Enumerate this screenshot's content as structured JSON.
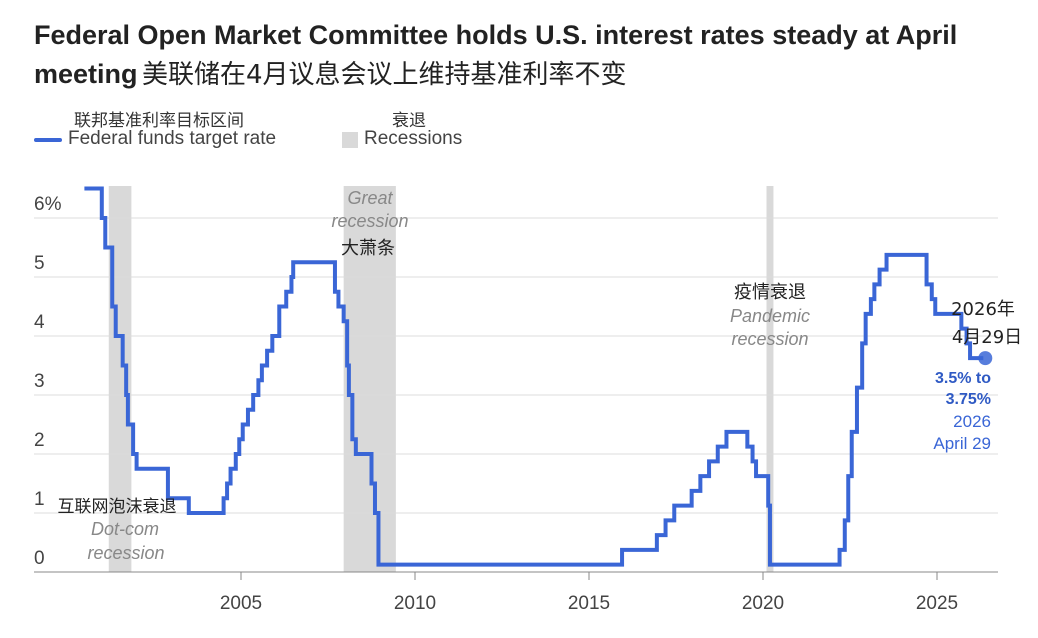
{
  "title": {
    "en": "Federal Open Market Committee holds U.S. interest rates steady at April meeting",
    "zh": "美联储在4月议息会议上维持基准利率不变"
  },
  "legend": {
    "rate": {
      "zh": "联邦基准利率目标区间",
      "en": "Federal funds target rate",
      "color": "#3a66d6"
    },
    "recession": {
      "zh": "衰退",
      "en": "Recessions",
      "color": "#d9d9d9"
    }
  },
  "chart_data": {
    "type": "line",
    "xlim": [
      2000.2,
      2027.3
    ],
    "ylim": [
      0,
      6.5
    ],
    "x_ticks": [
      {
        "value": 2005,
        "label": "2005"
      },
      {
        "value": 2010,
        "label": "2010"
      },
      {
        "value": 2015,
        "label": "2015"
      },
      {
        "value": 2020,
        "label": "2020"
      },
      {
        "value": 2025,
        "label": "2025"
      }
    ],
    "y_ticks": [
      {
        "value": 0,
        "label": "0"
      },
      {
        "value": 1,
        "label": "1"
      },
      {
        "value": 2,
        "label": "2"
      },
      {
        "value": 3,
        "label": "3"
      },
      {
        "value": 4,
        "label": "4"
      },
      {
        "value": 5,
        "label": "5"
      },
      {
        "value": 6,
        "label": "6%"
      }
    ],
    "grid": true,
    "series": [
      {
        "name": "Federal funds target rate",
        "step": true,
        "points": [
          [
            2000.5,
            6.5
          ],
          [
            2001.0,
            6.0
          ],
          [
            2001.1,
            5.5
          ],
          [
            2001.3,
            4.5
          ],
          [
            2001.4,
            4.0
          ],
          [
            2001.6,
            3.5
          ],
          [
            2001.7,
            3.0
          ],
          [
            2001.75,
            2.5
          ],
          [
            2001.9,
            2.0
          ],
          [
            2002.0,
            1.75
          ],
          [
            2002.9,
            1.25
          ],
          [
            2003.5,
            1.0
          ],
          [
            2004.5,
            1.25
          ],
          [
            2004.6,
            1.5
          ],
          [
            2004.7,
            1.75
          ],
          [
            2004.85,
            2.0
          ],
          [
            2004.95,
            2.25
          ],
          [
            2005.05,
            2.5
          ],
          [
            2005.2,
            2.75
          ],
          [
            2005.35,
            3.0
          ],
          [
            2005.5,
            3.25
          ],
          [
            2005.6,
            3.5
          ],
          [
            2005.75,
            3.75
          ],
          [
            2005.9,
            4.0
          ],
          [
            2006.1,
            4.5
          ],
          [
            2006.3,
            4.75
          ],
          [
            2006.45,
            5.0
          ],
          [
            2006.5,
            5.25
          ],
          [
            2007.7,
            4.75
          ],
          [
            2007.8,
            4.5
          ],
          [
            2007.95,
            4.25
          ],
          [
            2008.05,
            3.5
          ],
          [
            2008.1,
            3.0
          ],
          [
            2008.2,
            2.25
          ],
          [
            2008.3,
            2.0
          ],
          [
            2008.75,
            1.5
          ],
          [
            2008.85,
            1.0
          ],
          [
            2008.95,
            0.125
          ],
          [
            2015.95,
            0.375
          ],
          [
            2016.95,
            0.625
          ],
          [
            2017.2,
            0.875
          ],
          [
            2017.45,
            1.125
          ],
          [
            2017.95,
            1.375
          ],
          [
            2018.2,
            1.625
          ],
          [
            2018.45,
            1.875
          ],
          [
            2018.7,
            2.125
          ],
          [
            2018.95,
            2.375
          ],
          [
            2019.55,
            2.125
          ],
          [
            2019.7,
            1.875
          ],
          [
            2019.8,
            1.625
          ],
          [
            2020.15,
            1.125
          ],
          [
            2020.2,
            0.125
          ],
          [
            2022.2,
            0.375
          ],
          [
            2022.35,
            0.875
          ],
          [
            2022.45,
            1.625
          ],
          [
            2022.55,
            2.375
          ],
          [
            2022.7,
            3.125
          ],
          [
            2022.85,
            3.875
          ],
          [
            2022.95,
            4.375
          ],
          [
            2023.1,
            4.625
          ],
          [
            2023.2,
            4.875
          ],
          [
            2023.35,
            5.125
          ],
          [
            2023.55,
            5.375
          ],
          [
            2024.7,
            4.875
          ],
          [
            2024.85,
            4.625
          ],
          [
            2024.95,
            4.375
          ],
          [
            2025.7,
            4.125
          ],
          [
            2025.85,
            3.875
          ],
          [
            2025.95,
            3.625
          ],
          [
            2026.33,
            3.625
          ]
        ],
        "current_point": [
          2026.33,
          3.625
        ]
      }
    ],
    "recessions": [
      {
        "start": 2001.2,
        "end": 2001.85
      },
      {
        "start": 2007.95,
        "end": 2009.45
      },
      {
        "start": 2020.1,
        "end": 2020.3
      }
    ],
    "annotations": {
      "dotcom": {
        "zh": "互联网泡沫衰退",
        "en1": "Dot-com",
        "en2": "recession"
      },
      "great": {
        "zh": "大萧条",
        "en1": "Great",
        "en2": "recession"
      },
      "pandemic": {
        "zh": "疫情衰退",
        "en1": "Pandemic",
        "en2": "recession"
      },
      "current": {
        "zh1": "2026年",
        "zh2": "4月29日",
        "value1": "3.5% to",
        "value2": "3.75%",
        "date1": "2026",
        "date2": "April 29"
      }
    }
  }
}
